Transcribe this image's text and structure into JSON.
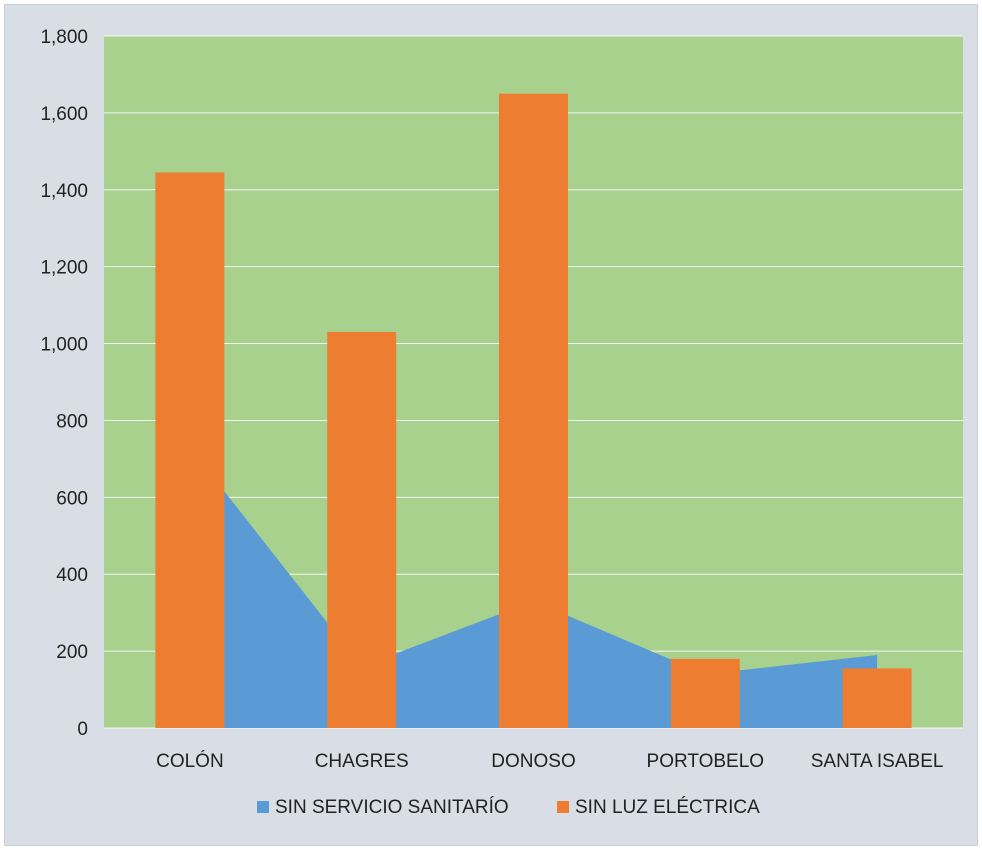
{
  "chart_data": {
    "type": "bar",
    "categories": [
      "COLÓN",
      "CHAGRES",
      "DONOSO",
      "PORTOBELO",
      "SANTA ISABEL"
    ],
    "series": [
      {
        "name": "SIN SERVICIO SANITARÍO",
        "render": "area",
        "color": "#5b9bd5",
        "values": [
          730,
          160,
          330,
          140,
          190
        ]
      },
      {
        "name": "SIN LUZ ELÉCTRICA",
        "render": "bar",
        "color": "#ed7d31",
        "values": [
          1445,
          1030,
          1650,
          180,
          155
        ]
      }
    ],
    "y_ticks": [
      "0",
      "200",
      "400",
      "600",
      "800",
      "1,000",
      "1,200",
      "1,400",
      "1,600",
      "1,800"
    ],
    "ylim": [
      0,
      1800
    ],
    "grid": true,
    "legend_position": "bottom",
    "plot_background": "#a9d18e",
    "frame_background": "#d9dde6",
    "gridline_color": "#ffffff"
  }
}
